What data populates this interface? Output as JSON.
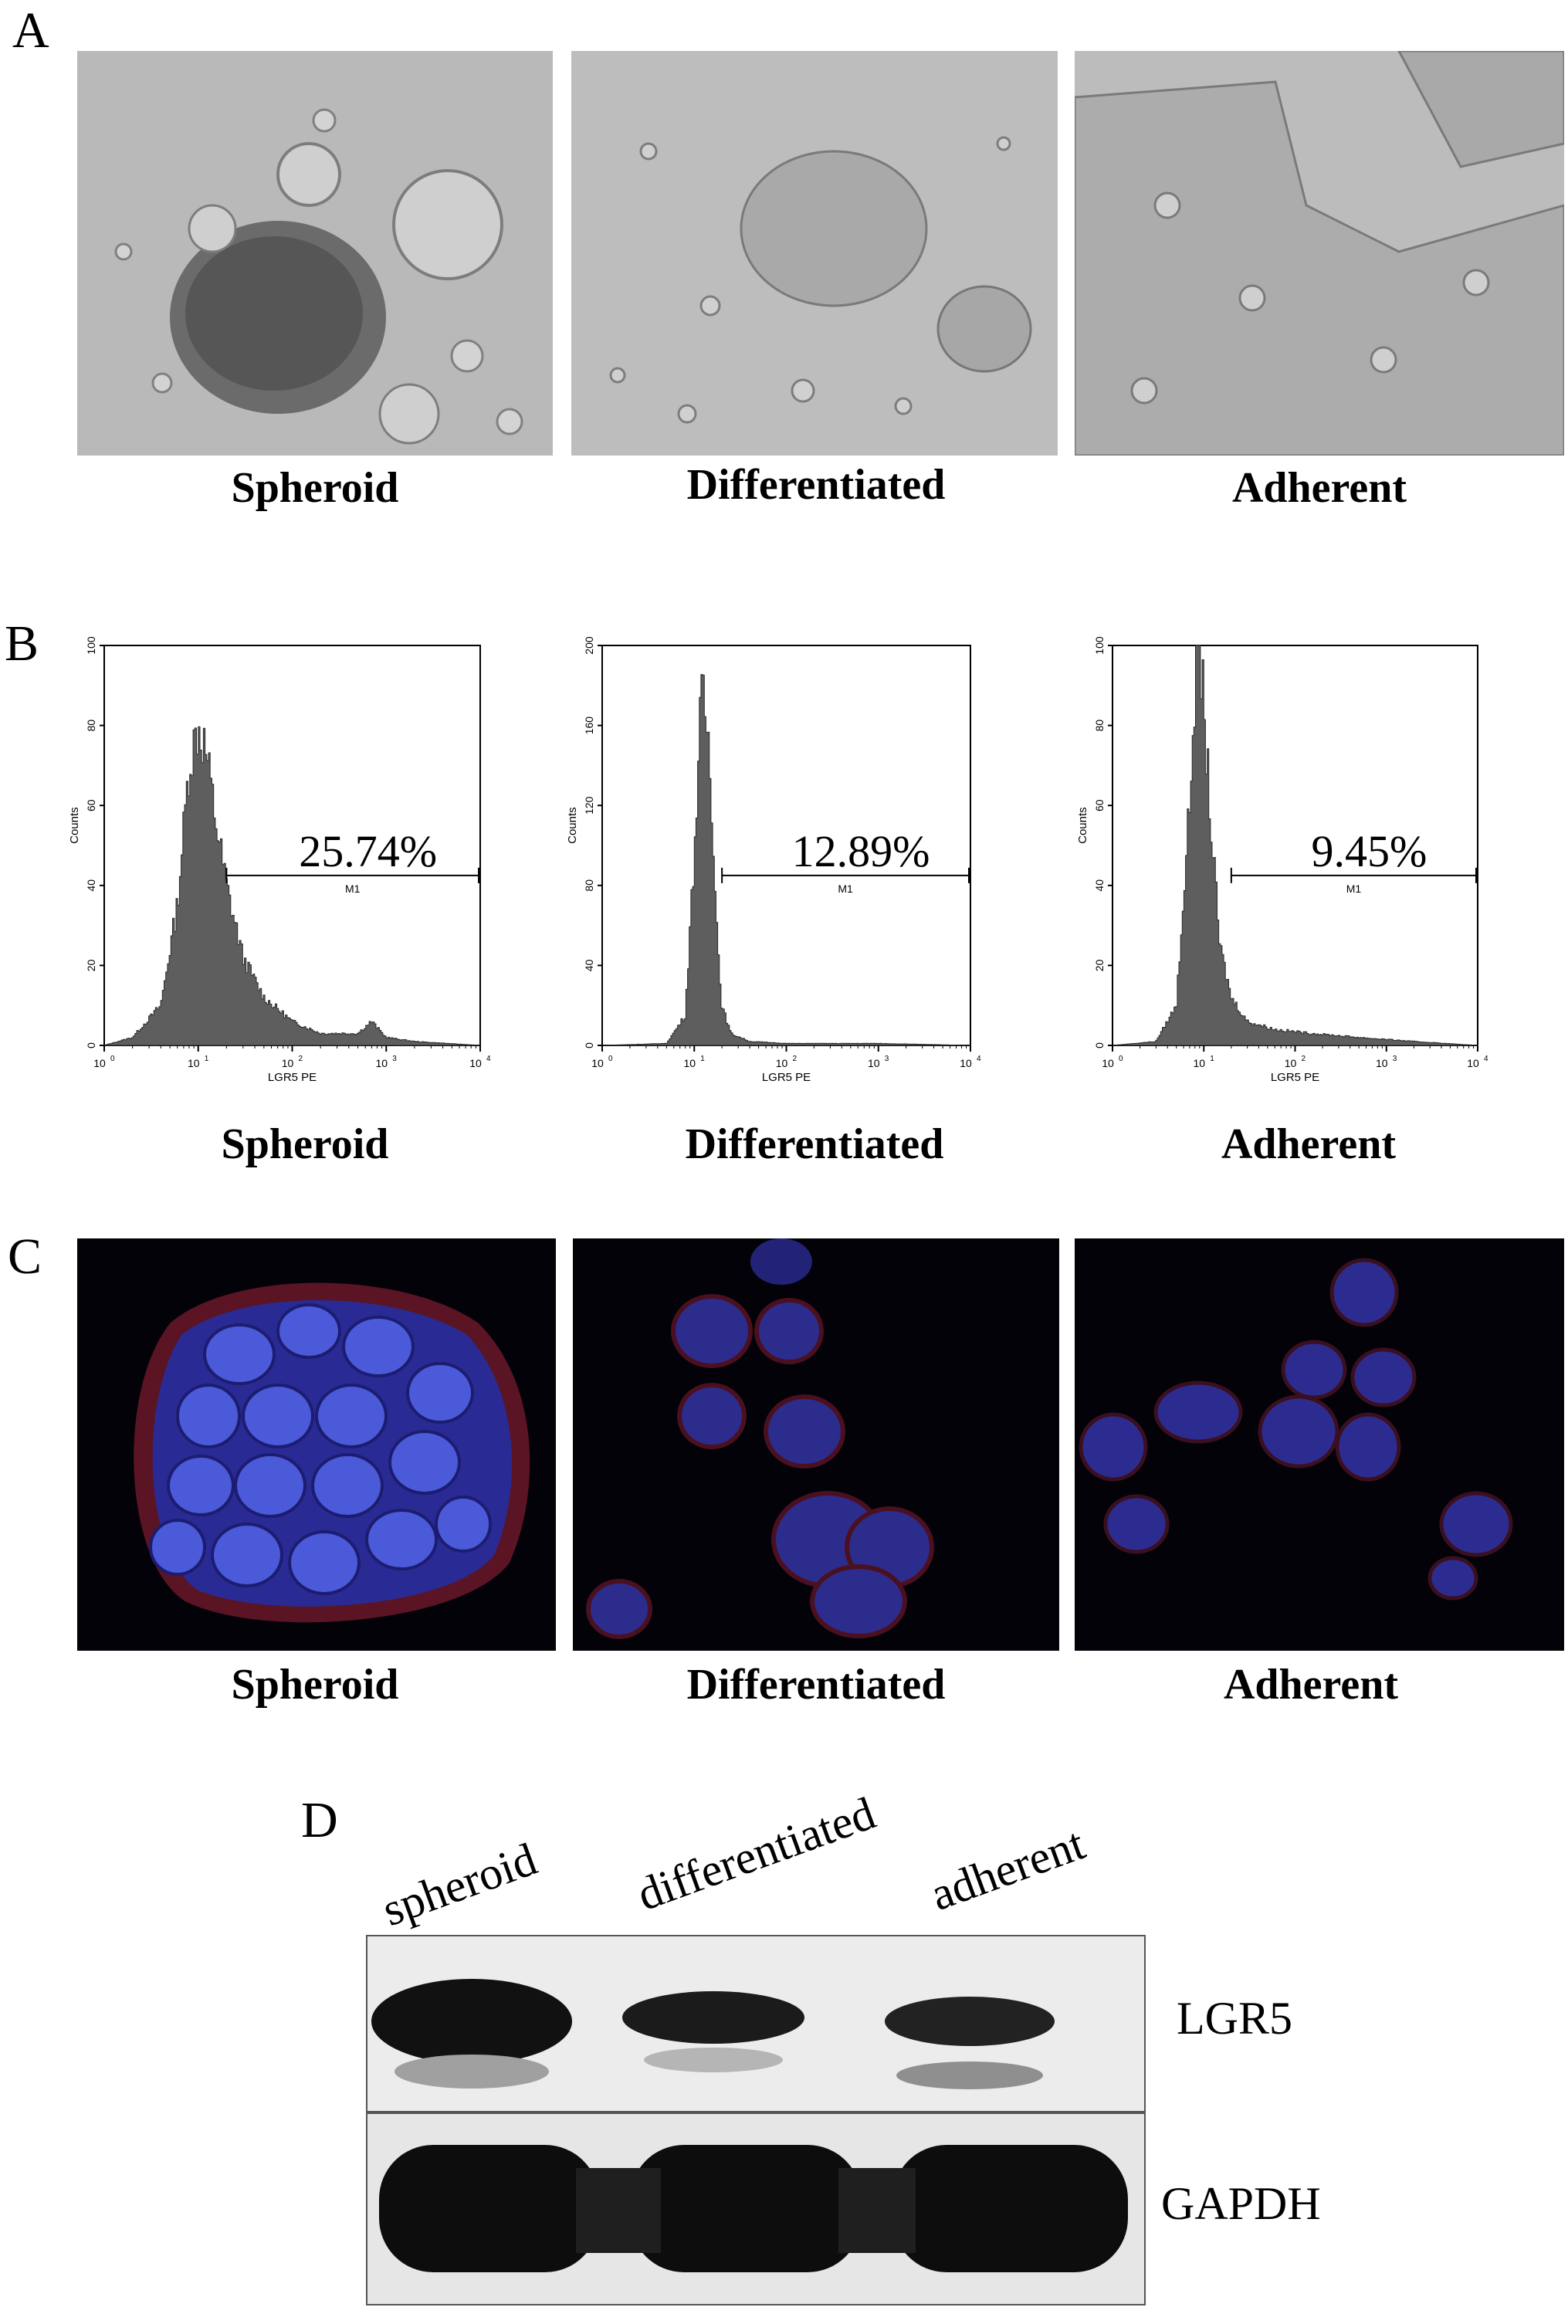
{
  "panels": {
    "A": {
      "letter": "A",
      "captions": [
        "Spheroid",
        "Differentiated",
        "Adherent"
      ]
    },
    "B": {
      "letter": "B",
      "captions": [
        "Spheroid",
        "Differentiated",
        "Adherent"
      ],
      "percentages": [
        "25.74%",
        "12.89%",
        "9.45%"
      ],
      "gate_label": "M1",
      "x_axis_label": "LGR5 PE",
      "y_axis_label": "Counts",
      "x_tick_base": "10",
      "x_tick_exponents": [
        "0",
        "1",
        "2",
        "3",
        "4"
      ],
      "y_ticks": [
        [
          "0",
          "20",
          "40",
          "60",
          "80",
          "100"
        ],
        [
          "0",
          "40",
          "80",
          "120",
          "160",
          "200"
        ],
        [
          "0",
          "20",
          "40",
          "60",
          "80",
          "100"
        ]
      ]
    },
    "C": {
      "letter": "C",
      "captions": [
        "Spheroid",
        "Differentiated",
        "Adherent"
      ]
    },
    "D": {
      "letter": "D",
      "lanes": [
        "spheroid",
        "differentiated",
        "adherent"
      ],
      "bands": [
        "LGR5",
        "GAPDH"
      ]
    }
  },
  "chart_data": [
    {
      "type": "area",
      "title": "",
      "xlabel": "LGR5 PE",
      "ylabel": "Counts",
      "xscale": "log",
      "xlim": [
        1,
        10000
      ],
      "ylim": [
        0,
        100
      ],
      "series": [
        {
          "name": "Spheroid",
          "x": [
            1,
            2,
            4,
            6,
            8,
            10,
            12,
            15,
            20,
            30,
            50,
            100,
            200,
            500,
            700,
            1000,
            2000,
            10000
          ],
          "y": [
            0,
            2,
            10,
            35,
            70,
            80,
            74,
            58,
            40,
            22,
            12,
            6,
            3,
            3,
            6,
            2,
            1,
            0
          ]
        }
      ],
      "gate": {
        "label": "M1",
        "range": [
          20,
          10000
        ],
        "percent": "25.74%"
      }
    },
    {
      "type": "area",
      "title": "",
      "xlabel": "LGR5 PE",
      "ylabel": "Counts",
      "xscale": "log",
      "xlim": [
        1,
        10000
      ],
      "ylim": [
        0,
        200
      ],
      "series": [
        {
          "name": "Differentiated",
          "x": [
            1,
            5,
            8,
            10,
            12,
            14,
            16,
            18,
            20,
            25,
            40,
            100,
            1000,
            10000
          ],
          "y": [
            0,
            1,
            15,
            95,
            175,
            160,
            110,
            50,
            20,
            6,
            2,
            1,
            1,
            0
          ]
        }
      ],
      "gate": {
        "label": "M1",
        "range": [
          20,
          10000
        ],
        "percent": "12.89%"
      }
    },
    {
      "type": "area",
      "title": "",
      "xlabel": "LGR5 PE",
      "ylabel": "Counts",
      "xscale": "log",
      "xlim": [
        1,
        10000
      ],
      "ylim": [
        0,
        100
      ],
      "series": [
        {
          "name": "Adherent",
          "x": [
            1,
            3,
            5,
            7,
            8,
            9,
            10,
            12,
            15,
            20,
            30,
            60,
            150,
            500,
            2000,
            10000
          ],
          "y": [
            0,
            1,
            10,
            60,
            90,
            100,
            85,
            55,
            25,
            12,
            6,
            4,
            3,
            2,
            1,
            0
          ]
        }
      ],
      "gate": {
        "label": "M1",
        "range": [
          20,
          10000
        ],
        "percent": "9.45%"
      }
    }
  ]
}
